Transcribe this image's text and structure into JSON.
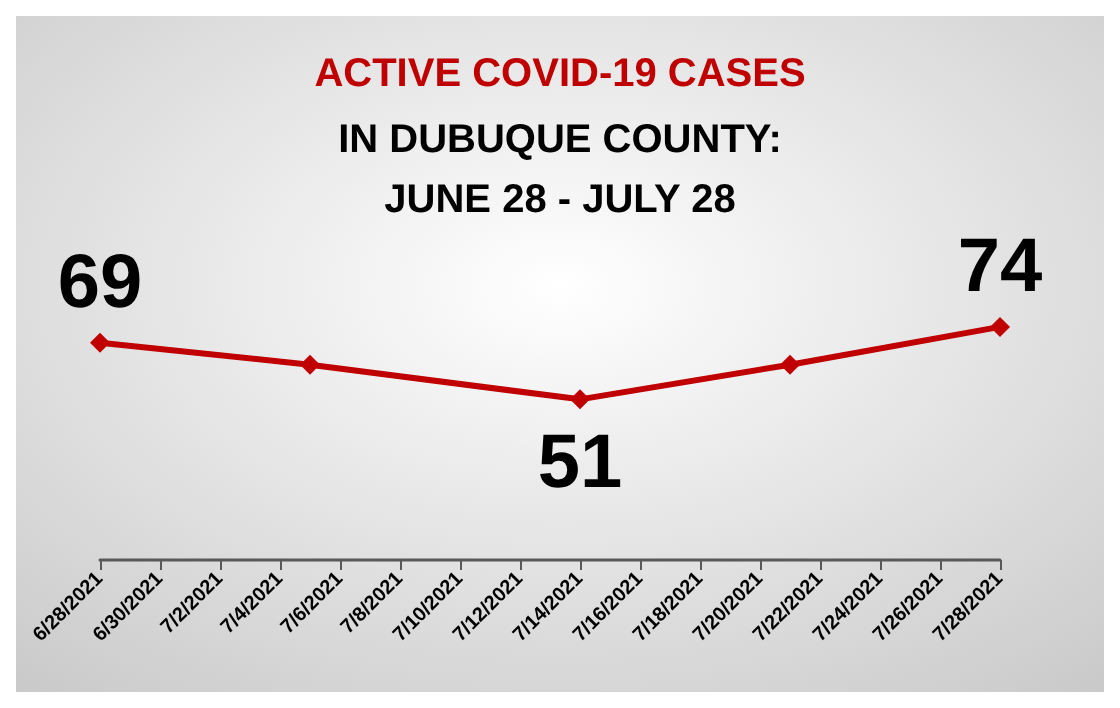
{
  "chart_data": {
    "type": "line",
    "title": "ACTIVE COVID-19 CASES",
    "subtitle": "IN DUBUQUE COUNTY:\nJUNE 28 - JULY 28",
    "x": [
      "2021-06-28",
      "2021-07-05",
      "2021-07-14",
      "2021-07-21",
      "2021-07-28"
    ],
    "series": [
      {
        "color": "#c00000",
        "values": [
          69,
          62,
          51,
          62,
          74
        ],
        "value_labels": [
          "69",
          null,
          "51",
          null,
          "74"
        ]
      }
    ],
    "xlim": [
      "2021-06-28",
      "2021-07-28"
    ],
    "xticks": [
      {
        "value": "2021-06-28",
        "label": "6/28/2021"
      },
      {
        "value": "2021-06-30",
        "label": "6/30/2021"
      },
      {
        "value": "2021-07-02",
        "label": "7/2/2021"
      },
      {
        "value": "2021-07-04",
        "label": "7/4/2021"
      },
      {
        "value": "2021-07-06",
        "label": "7/6/2021"
      },
      {
        "value": "2021-07-08",
        "label": "7/8/2021"
      },
      {
        "value": "2021-07-10",
        "label": "7/10/2021"
      },
      {
        "value": "2021-07-12",
        "label": "7/12/2021"
      },
      {
        "value": "2021-07-14",
        "label": "7/14/2021"
      },
      {
        "value": "2021-07-16",
        "label": "7/16/2021"
      },
      {
        "value": "2021-07-18",
        "label": "7/18/2021"
      },
      {
        "value": "2021-07-20",
        "label": "7/20/2021"
      },
      {
        "value": "2021-07-22",
        "label": "7/22/2021"
      },
      {
        "value": "2021-07-24",
        "label": "7/24/2021"
      },
      {
        "value": "2021-07-26",
        "label": "7/26/2021"
      },
      {
        "value": "2021-07-28",
        "label": "7/28/2021"
      }
    ],
    "tick_labels": "x",
    "grid": false,
    "marker": "diamond",
    "line_style": "solid"
  }
}
